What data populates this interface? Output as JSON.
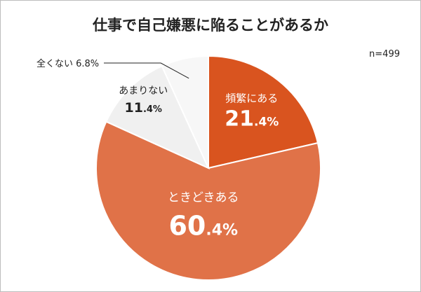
{
  "chart_data": {
    "type": "pie",
    "title": "仕事で自己嫌悪に陥ることがあるか",
    "note": "n=499",
    "unit": "%",
    "slices": [
      {
        "label": "頻繁にある",
        "value": 21.4,
        "value_int": "21",
        "value_dec": ".4%",
        "color": "#d9541f"
      },
      {
        "label": "ときどきある",
        "value": 60.4,
        "value_int": "60",
        "value_dec": ".4%",
        "color": "#e07248"
      },
      {
        "label": "あまりない",
        "value": 11.4,
        "value_int": "11",
        "value_dec": ".4%",
        "color": "#f0f0f0"
      },
      {
        "label": "全くない",
        "value": 6.8,
        "value_text": "6.8%",
        "color": "#f7f7f7"
      }
    ]
  }
}
